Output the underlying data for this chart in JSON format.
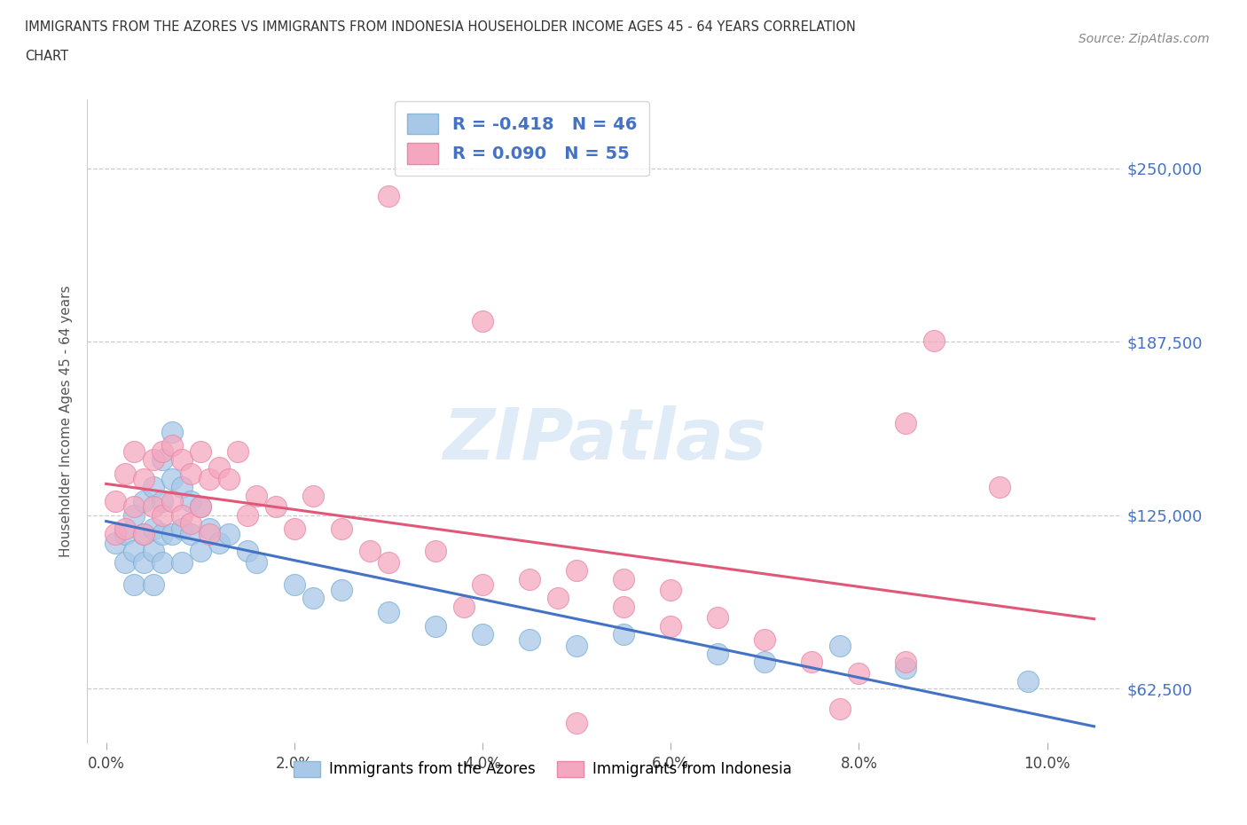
{
  "title_line1": "IMMIGRANTS FROM THE AZORES VS IMMIGRANTS FROM INDONESIA HOUSEHOLDER INCOME AGES 45 - 64 YEARS CORRELATION",
  "title_line2": "CHART",
  "source": "Source: ZipAtlas.com",
  "ylabel": "Householder Income Ages 45 - 64 years",
  "watermark": "ZIPatlas",
  "legend_r_labels": [
    "R = -0.418   N = 46",
    "R = 0.090   N = 55"
  ],
  "legend_labels": [
    "Immigrants from the Azores",
    "Immigrants from Indonesia"
  ],
  "azores_color": "#a8c8e8",
  "indonesia_color": "#f4a8c0",
  "azores_line_color": "#4472c4",
  "indonesia_line_color": "#e05878",
  "ytick_labels": [
    "$62,500",
    "$125,000",
    "$187,500",
    "$250,000"
  ],
  "ytick_values": [
    62500,
    125000,
    187500,
    250000
  ],
  "xtick_labels": [
    "0.0%",
    "2.0%",
    "4.0%",
    "6.0%",
    "8.0%",
    "10.0%"
  ],
  "xtick_values": [
    0.0,
    0.02,
    0.04,
    0.06,
    0.08,
    0.1
  ],
  "xlim": [
    -0.002,
    0.108
  ],
  "ylim": [
    43000,
    275000
  ],
  "background_color": "#ffffff",
  "grid_color": "#cccccc",
  "azores_x": [
    0.001,
    0.002,
    0.002,
    0.003,
    0.003,
    0.003,
    0.004,
    0.004,
    0.004,
    0.005,
    0.005,
    0.005,
    0.005,
    0.006,
    0.006,
    0.006,
    0.006,
    0.007,
    0.007,
    0.007,
    0.008,
    0.008,
    0.008,
    0.009,
    0.009,
    0.01,
    0.01,
    0.011,
    0.012,
    0.013,
    0.015,
    0.016,
    0.02,
    0.022,
    0.025,
    0.03,
    0.035,
    0.04,
    0.045,
    0.05,
    0.055,
    0.065,
    0.07,
    0.078,
    0.085,
    0.098
  ],
  "azores_y": [
    115000,
    108000,
    118000,
    125000,
    112000,
    100000,
    130000,
    118000,
    108000,
    135000,
    120000,
    112000,
    100000,
    145000,
    130000,
    118000,
    108000,
    155000,
    138000,
    118000,
    135000,
    120000,
    108000,
    130000,
    118000,
    128000,
    112000,
    120000,
    115000,
    118000,
    112000,
    108000,
    100000,
    95000,
    98000,
    90000,
    85000,
    82000,
    80000,
    78000,
    82000,
    75000,
    72000,
    78000,
    70000,
    65000
  ],
  "indonesia_x": [
    0.001,
    0.001,
    0.002,
    0.002,
    0.003,
    0.003,
    0.004,
    0.004,
    0.005,
    0.005,
    0.006,
    0.006,
    0.007,
    0.007,
    0.008,
    0.008,
    0.009,
    0.009,
    0.01,
    0.01,
    0.011,
    0.011,
    0.012,
    0.013,
    0.014,
    0.015,
    0.016,
    0.018,
    0.02,
    0.022,
    0.025,
    0.028,
    0.03,
    0.035,
    0.038,
    0.04,
    0.045,
    0.048,
    0.05,
    0.055,
    0.055,
    0.06,
    0.06,
    0.065,
    0.07,
    0.075,
    0.078,
    0.08,
    0.085,
    0.088,
    0.03,
    0.04,
    0.05,
    0.085,
    0.095
  ],
  "indonesia_y": [
    130000,
    118000,
    140000,
    120000,
    148000,
    128000,
    138000,
    118000,
    145000,
    128000,
    148000,
    125000,
    150000,
    130000,
    145000,
    125000,
    140000,
    122000,
    148000,
    128000,
    138000,
    118000,
    142000,
    138000,
    148000,
    125000,
    132000,
    128000,
    120000,
    132000,
    120000,
    112000,
    108000,
    112000,
    92000,
    100000,
    102000,
    95000,
    105000,
    102000,
    92000,
    98000,
    85000,
    88000,
    80000,
    72000,
    55000,
    68000,
    72000,
    188000,
    240000,
    195000,
    50000,
    158000,
    135000
  ]
}
